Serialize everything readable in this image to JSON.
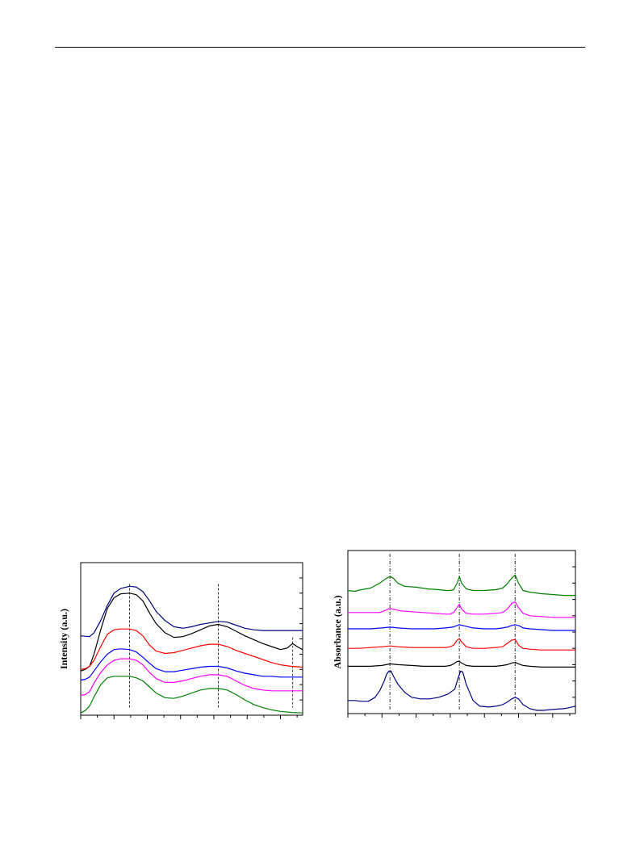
{
  "chart_data": [
    {
      "type": "line",
      "ylabel": "Intensity (a.u.)",
      "xlim": [
        0,
        100
      ],
      "ylim": [
        0,
        100
      ],
      "x_ticks": [
        0,
        7.5,
        15,
        22.5,
        30,
        37.5,
        45,
        52.5,
        60,
        67.5,
        75,
        82.5,
        90,
        97.5
      ],
      "y_ticks": [
        0,
        10,
        20,
        30,
        40,
        50,
        60,
        70,
        80,
        90,
        100
      ],
      "guides": [
        22,
        62,
        95.5
      ],
      "series": [
        {
          "color": "#000080",
          "x": [
            0,
            4,
            6,
            9,
            12,
            15,
            18,
            22,
            25,
            28,
            31,
            34,
            38,
            42,
            46,
            50,
            54,
            58,
            62,
            66,
            70,
            74,
            78,
            82,
            86,
            90,
            95,
            100
          ],
          "y": [
            52,
            51.5,
            54,
            62,
            72,
            80,
            83,
            84.5,
            84,
            81,
            75,
            68,
            62,
            58,
            57,
            58,
            59.5,
            60.5,
            61.5,
            61,
            59,
            57,
            56,
            55.5,
            55.5,
            55.5,
            55.5,
            55.5
          ]
        },
        {
          "color": "#000000",
          "x": [
            0,
            2,
            4,
            6,
            9,
            12,
            15,
            18,
            22,
            25,
            28,
            31,
            34,
            38,
            42,
            46,
            50,
            54,
            58,
            62,
            66,
            70,
            74,
            78,
            82,
            86,
            90,
            93,
            95.5,
            98,
            100
          ],
          "y": [
            29,
            30,
            32,
            40,
            56,
            70,
            77,
            79.5,
            80,
            79,
            75,
            67,
            60,
            54,
            51,
            51.5,
            53.5,
            56,
            58.5,
            59.5,
            58,
            55,
            52,
            49.5,
            47,
            45,
            43,
            44,
            47,
            44.5,
            43
          ]
        },
        {
          "color": "#ff0000",
          "x": [
            0,
            2,
            4,
            6,
            9,
            12,
            15,
            18,
            22,
            25,
            28,
            31,
            34,
            38,
            42,
            46,
            50,
            54,
            58,
            62,
            66,
            70,
            74,
            78,
            82,
            86,
            90,
            95,
            100
          ],
          "y": [
            30,
            30.5,
            32,
            36,
            45,
            53,
            56,
            56.5,
            56.5,
            55.5,
            52,
            46,
            42,
            40.5,
            41,
            42.5,
            44,
            45.5,
            46.5,
            46.5,
            45,
            42.5,
            40.5,
            38.5,
            36.5,
            34.5,
            33,
            32,
            31.5
          ]
        },
        {
          "color": "#0000ff",
          "x": [
            0,
            2,
            4,
            6,
            9,
            12,
            15,
            18,
            22,
            25,
            28,
            31,
            34,
            38,
            42,
            46,
            50,
            54,
            58,
            62,
            66,
            70,
            74,
            78,
            82,
            86,
            90,
            95,
            100
          ],
          "y": [
            23,
            23.5,
            25,
            29,
            35,
            40,
            43,
            43.5,
            43,
            41.5,
            38,
            34,
            30.5,
            28.5,
            28.5,
            29.5,
            30.5,
            31.5,
            32,
            32,
            31,
            29,
            27.5,
            26.5,
            25.5,
            25.5,
            25,
            25,
            25
          ]
        },
        {
          "color": "#ff00ff",
          "x": [
            0,
            2,
            4,
            6,
            9,
            12,
            15,
            18,
            22,
            25,
            28,
            31,
            34,
            38,
            42,
            46,
            50,
            54,
            58,
            62,
            66,
            70,
            74,
            78,
            82,
            86,
            90,
            95,
            100
          ],
          "y": [
            13,
            13.5,
            15.5,
            21,
            28,
            33,
            36,
            37,
            37,
            36,
            33,
            28,
            24,
            21.5,
            21.5,
            22.5,
            24,
            25.5,
            26.5,
            26.5,
            25.5,
            22.5,
            19.5,
            17.5,
            16.5,
            16,
            16,
            16,
            16
          ]
        },
        {
          "color": "#008000",
          "x": [
            0,
            2,
            4,
            6,
            9,
            12,
            15,
            18,
            22,
            25,
            28,
            31,
            34,
            38,
            42,
            46,
            50,
            54,
            58,
            62,
            66,
            70,
            74,
            78,
            82,
            86,
            90,
            95,
            100
          ],
          "y": [
            1.5,
            3,
            6,
            12,
            20,
            24.5,
            25.5,
            25.5,
            25.5,
            24.5,
            22.5,
            18.5,
            14.5,
            11.5,
            11,
            12.5,
            14.5,
            16.5,
            17.5,
            17.5,
            16.5,
            13.5,
            10,
            7,
            5,
            3.5,
            2.5,
            1.8,
            1.5
          ]
        }
      ]
    },
    {
      "type": "line",
      "ylabel": "Absorbance (a.u.)",
      "xlim": [
        0,
        100
      ],
      "ylim": [
        0,
        100
      ],
      "x_ticks": [
        0,
        7.5,
        15,
        22.5,
        30,
        37.5,
        45,
        52.5,
        60,
        67.5,
        75,
        82.5,
        90,
        97.5
      ],
      "y_ticks": [
        0,
        10,
        20,
        30,
        40,
        50,
        60,
        70,
        80,
        90,
        100
      ],
      "guides": [
        18.5,
        49,
        73.5
      ],
      "series": [
        {
          "color": "#008000",
          "x": [
            0,
            3,
            6,
            10,
            14,
            17,
            18.5,
            20,
            22,
            25,
            30,
            35,
            40,
            43,
            45,
            46.5,
            48,
            49,
            50,
            52,
            55,
            60,
            65,
            68,
            70,
            72,
            73.5,
            75,
            77,
            80,
            85,
            90,
            95,
            100
          ],
          "y": [
            75.5,
            75,
            76,
            77,
            80,
            83,
            84,
            83,
            80,
            78,
            77.5,
            76.5,
            76,
            75.5,
            75.5,
            76,
            80,
            84,
            80,
            76.5,
            75.5,
            75.5,
            76,
            77,
            79.5,
            83,
            85,
            80,
            75.5,
            74.5,
            73.5,
            73,
            72.5,
            72.5
          ]
        },
        {
          "color": "#ff00ff",
          "x": [
            0,
            5,
            10,
            14,
            16,
            18.5,
            20,
            23,
            28,
            33,
            38,
            43,
            45,
            46.5,
            48,
            49,
            50,
            52,
            55,
            60,
            65,
            68,
            70,
            72,
            73.5,
            75,
            77,
            80,
            85,
            90,
            95,
            100
          ],
          "y": [
            62,
            62,
            62,
            62,
            63,
            64.5,
            64,
            63,
            62.5,
            62,
            61.5,
            61,
            61,
            62,
            65,
            67,
            64,
            61.5,
            61,
            61,
            61.5,
            62,
            64,
            67.5,
            68.5,
            65,
            61.5,
            60,
            59.5,
            59,
            59,
            59
          ]
        },
        {
          "color": "#0000ff",
          "x": [
            0,
            5,
            10,
            15,
            18.5,
            22,
            28,
            33,
            38,
            43,
            46,
            49,
            52,
            55,
            60,
            65,
            68,
            70,
            72,
            73.5,
            75,
            77,
            80,
            85,
            90,
            95,
            100
          ],
          "y": [
            52,
            52,
            52,
            52.5,
            53,
            52.5,
            52,
            52,
            52,
            52.5,
            53,
            54.5,
            53.5,
            52.5,
            52,
            52,
            52.5,
            53,
            54,
            54.5,
            54,
            52.5,
            52,
            51.5,
            51,
            51,
            51
          ]
        },
        {
          "color": "#ff0000",
          "x": [
            0,
            5,
            10,
            15,
            18.5,
            22,
            28,
            33,
            38,
            43,
            45,
            46.5,
            48,
            49,
            50,
            52,
            55,
            60,
            65,
            68,
            70,
            72,
            73.5,
            75,
            77,
            80,
            85,
            90,
            95,
            100
          ],
          "y": [
            40,
            40,
            40.5,
            41,
            41.5,
            41,
            40.5,
            40.5,
            40.5,
            40.5,
            41,
            42,
            45,
            46,
            44,
            41,
            40,
            40,
            40.5,
            41,
            43,
            45,
            45.5,
            42,
            40,
            39.5,
            39,
            39,
            39,
            39
          ]
        },
        {
          "color": "#000000",
          "x": [
            0,
            5,
            10,
            15,
            18.5,
            22,
            28,
            33,
            38,
            43,
            45,
            46.5,
            48,
            49,
            50,
            52,
            55,
            60,
            65,
            68,
            70,
            72,
            73.5,
            75,
            77,
            80,
            85,
            90,
            95,
            100
          ],
          "y": [
            29,
            29,
            29,
            29.5,
            30.5,
            30,
            29.5,
            29,
            29,
            29,
            29.5,
            30.5,
            32,
            32,
            31,
            29.5,
            29,
            29,
            29,
            29.5,
            30,
            31,
            31.5,
            30.5,
            29.5,
            29,
            28.5,
            28.5,
            28.5,
            28.5
          ]
        },
        {
          "color": "#000080",
          "x": [
            0,
            3,
            6,
            9,
            12,
            14,
            16,
            17,
            18,
            19,
            20,
            22,
            25,
            28,
            32,
            36,
            40,
            44,
            47,
            48.5,
            49.5,
            50.5,
            52,
            55,
            58,
            62,
            65,
            68,
            70,
            72,
            73.5,
            75,
            77,
            80,
            83,
            86,
            90,
            95,
            100
          ],
          "y": [
            8,
            8,
            7.5,
            7.5,
            10,
            14,
            20,
            24,
            26,
            26,
            23,
            18,
            13,
            10,
            9,
            9,
            10,
            12,
            15,
            22,
            26,
            25.5,
            18,
            8,
            4.5,
            4,
            4.5,
            5.5,
            7,
            9,
            10,
            9,
            5.5,
            3,
            2,
            2,
            2.5,
            3,
            4.5
          ]
        }
      ]
    }
  ]
}
